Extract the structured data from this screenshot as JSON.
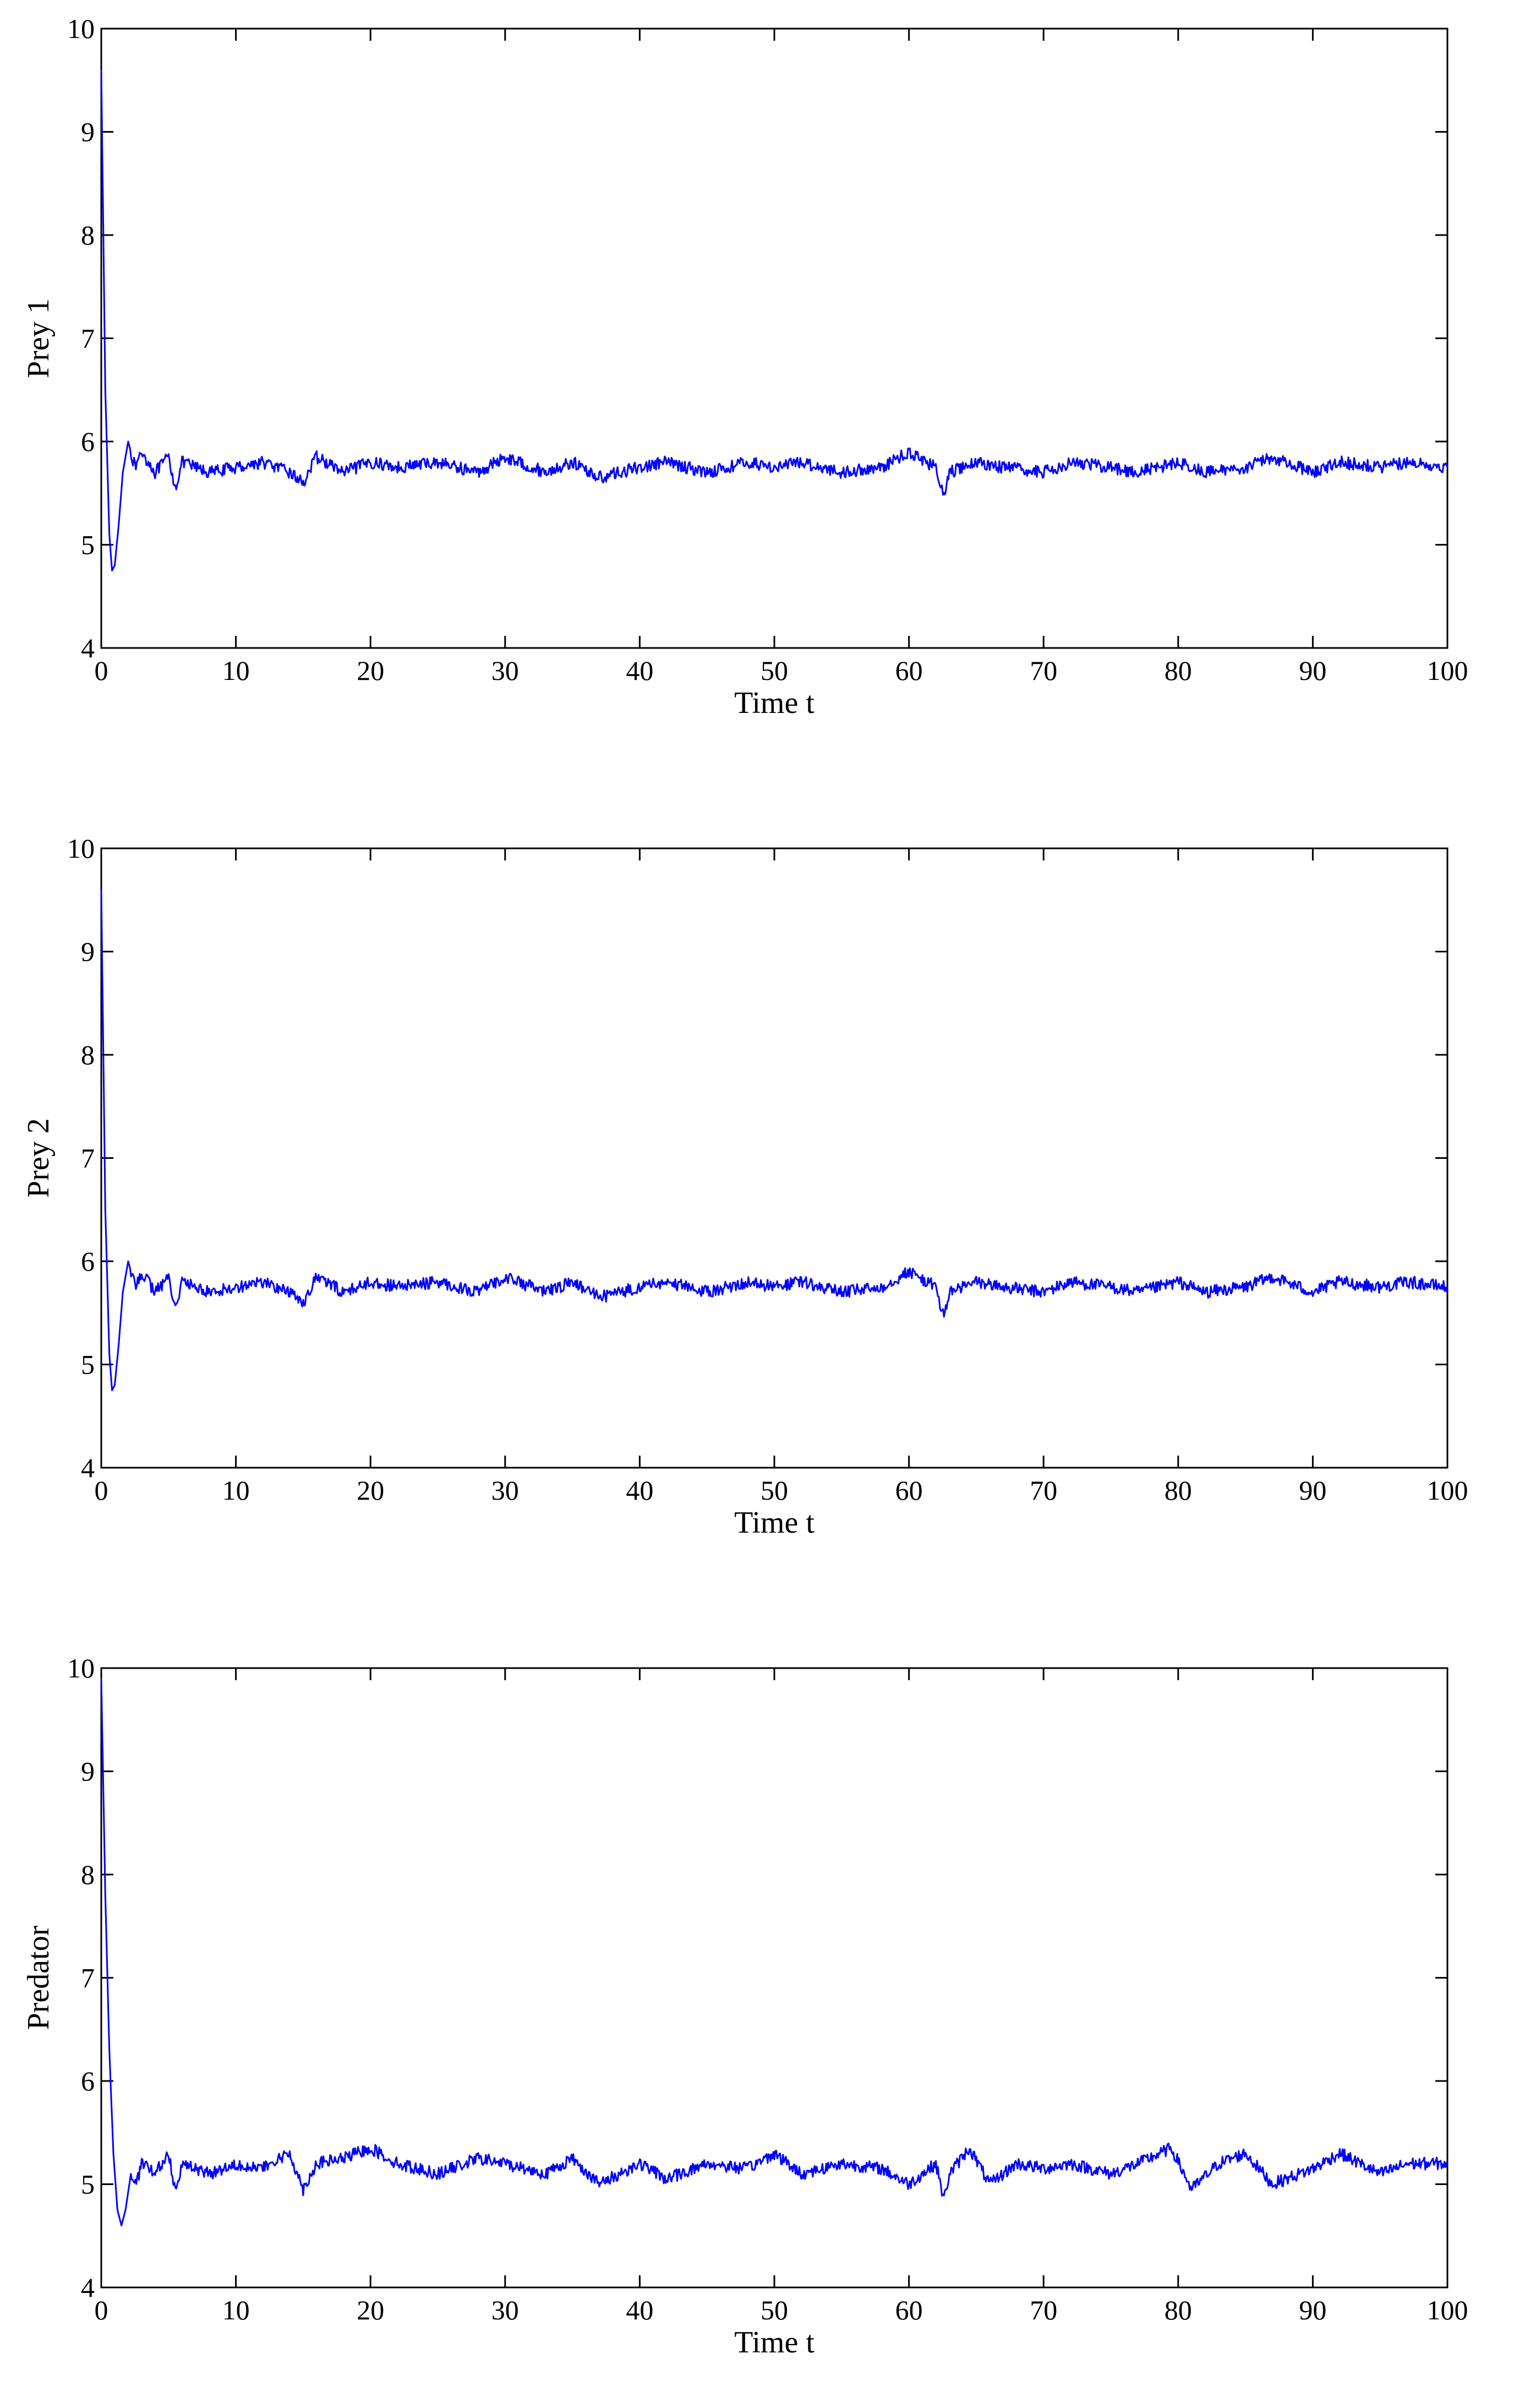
{
  "chart_data": [
    {
      "type": "line",
      "xlabel": "Time t",
      "ylabel": "Prey 1",
      "xlim": [
        0,
        100
      ],
      "ylim": [
        4,
        10
      ],
      "xticks": [
        "0",
        "10",
        "20",
        "30",
        "40",
        "50",
        "60",
        "70",
        "80",
        "90",
        "100"
      ],
      "yticks": [
        "4",
        "5",
        "6",
        "7",
        "8",
        "9",
        "10"
      ],
      "grid": false,
      "series": [
        {
          "color": "#0000ff",
          "x": [
            0,
            0.3,
            0.6,
            0.8,
            1.0,
            1.3,
            1.6,
            2.0,
            2.5,
            3,
            4,
            5,
            5.5,
            6,
            8,
            10,
            12,
            14,
            15,
            16,
            18,
            20,
            22,
            25,
            28,
            30,
            33,
            35,
            37,
            40,
            42,
            45,
            48,
            50,
            52,
            55,
            58,
            60,
            62,
            62.6,
            63,
            65,
            67,
            70,
            72,
            75,
            77,
            80,
            82,
            85,
            87,
            90,
            92,
            95,
            97,
            100
          ],
          "y": [
            9.6,
            6.5,
            5.1,
            4.75,
            4.8,
            5.2,
            5.7,
            6.0,
            5.75,
            5.9,
            5.7,
            5.85,
            5.55,
            5.8,
            5.7,
            5.75,
            5.8,
            5.7,
            5.6,
            5.85,
            5.7,
            5.8,
            5.75,
            5.8,
            5.7,
            5.85,
            5.7,
            5.8,
            5.65,
            5.75,
            5.8,
            5.7,
            5.8,
            5.75,
            5.8,
            5.7,
            5.75,
            5.9,
            5.75,
            5.45,
            5.7,
            5.8,
            5.75,
            5.7,
            5.8,
            5.75,
            5.7,
            5.8,
            5.7,
            5.75,
            5.85,
            5.7,
            5.8,
            5.75,
            5.8,
            5.75
          ]
        }
      ]
    },
    {
      "type": "line",
      "xlabel": "Time t",
      "ylabel": "Prey 2",
      "xlim": [
        0,
        100
      ],
      "ylim": [
        4,
        10
      ],
      "xticks": [
        "0",
        "10",
        "20",
        "30",
        "40",
        "50",
        "60",
        "70",
        "80",
        "90",
        "100"
      ],
      "yticks": [
        "4",
        "5",
        "6",
        "7",
        "8",
        "9",
        "10"
      ],
      "grid": false,
      "series": [
        {
          "color": "#0000ff",
          "x": [
            0,
            0.3,
            0.6,
            0.8,
            1.0,
            1.3,
            1.6,
            2.0,
            2.5,
            3,
            4,
            5,
            5.5,
            6,
            8,
            10,
            12,
            14,
            15,
            16,
            18,
            20,
            22,
            25,
            28,
            30,
            33,
            35,
            37,
            40,
            42,
            45,
            48,
            50,
            52,
            55,
            58,
            60,
            62,
            62.6,
            63,
            65,
            67,
            70,
            72,
            75,
            77,
            80,
            82,
            85,
            87,
            90,
            92,
            95,
            97,
            100
          ],
          "y": [
            9.6,
            6.5,
            5.1,
            4.75,
            4.8,
            5.2,
            5.7,
            6.0,
            5.75,
            5.9,
            5.7,
            5.85,
            5.55,
            5.8,
            5.7,
            5.75,
            5.8,
            5.7,
            5.6,
            5.85,
            5.7,
            5.8,
            5.75,
            5.8,
            5.7,
            5.85,
            5.7,
            5.8,
            5.65,
            5.75,
            5.8,
            5.7,
            5.8,
            5.75,
            5.8,
            5.7,
            5.75,
            5.9,
            5.75,
            5.45,
            5.7,
            5.8,
            5.75,
            5.7,
            5.8,
            5.75,
            5.7,
            5.8,
            5.7,
            5.75,
            5.85,
            5.7,
            5.8,
            5.75,
            5.8,
            5.75
          ]
        }
      ]
    },
    {
      "type": "line",
      "xlabel": "Time t",
      "ylabel": "Predator",
      "xlim": [
        0,
        100
      ],
      "ylim": [
        4,
        10
      ],
      "xticks": [
        "0",
        "10",
        "20",
        "30",
        "40",
        "50",
        "60",
        "70",
        "80",
        "90",
        "100"
      ],
      "yticks": [
        "4",
        "5",
        "6",
        "7",
        "8",
        "9",
        "10"
      ],
      "grid": false,
      "series": [
        {
          "color": "#0000ff",
          "x": [
            0,
            0.3,
            0.6,
            0.9,
            1.2,
            1.5,
            1.8,
            2.2,
            2.6,
            3,
            4,
            5,
            5.5,
            6,
            8,
            10,
            12,
            14,
            15,
            16,
            18,
            20,
            22,
            25,
            28,
            30,
            33,
            35,
            37,
            40,
            42,
            45,
            48,
            50,
            52,
            55,
            58,
            60,
            62,
            62.6,
            63,
            64.5,
            66,
            68,
            70,
            72,
            75,
            77,
            79.5,
            81,
            83,
            85,
            87,
            90,
            92,
            95,
            97,
            100
          ],
          "y": [
            9.9,
            7.8,
            6.3,
            5.3,
            4.75,
            4.6,
            4.75,
            5.1,
            5.0,
            5.2,
            5.1,
            5.3,
            4.95,
            5.2,
            5.1,
            5.2,
            5.15,
            5.3,
            4.95,
            5.2,
            5.25,
            5.35,
            5.2,
            5.1,
            5.25,
            5.2,
            5.1,
            5.25,
            5.0,
            5.2,
            5.05,
            5.2,
            5.15,
            5.3,
            5.1,
            5.2,
            5.15,
            5.0,
            5.2,
            4.85,
            5.1,
            5.35,
            5.0,
            5.2,
            5.15,
            5.2,
            5.1,
            5.2,
            5.35,
            4.95,
            5.2,
            5.3,
            5.0,
            5.15,
            5.3,
            5.1,
            5.2,
            5.2
          ]
        }
      ]
    }
  ]
}
